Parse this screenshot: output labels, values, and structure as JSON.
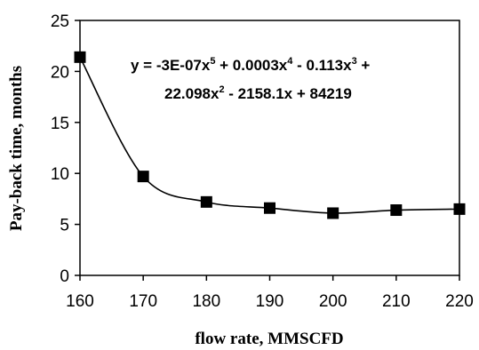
{
  "chart_data": {
    "type": "scatter",
    "xlabel": "flow rate, MMSCFD",
    "ylabel": "Pay-back time, months",
    "xlim": [
      160,
      220
    ],
    "ylim": [
      0,
      25
    ],
    "x_ticks": [
      "160",
      "170",
      "180",
      "190",
      "200",
      "210",
      "220"
    ],
    "y_ticks": [
      "0",
      "5",
      "10",
      "15",
      "20",
      "25"
    ],
    "grid": false,
    "series": [
      {
        "marker": "square",
        "color": "#000000",
        "x": [
          160,
          170,
          180,
          190,
          200,
          210,
          220
        ],
        "y": [
          21.4,
          9.7,
          7.2,
          6.6,
          6.1,
          6.4,
          6.5
        ]
      }
    ],
    "trendline": {
      "type": "polynomial",
      "order": 5,
      "color": "#000000",
      "equation_line1": "y = -3E-07x5 + 0.0003x4 - 0.113x3 +",
      "equation_line2": "22.098x2 - 2158.1x + 84219"
    }
  }
}
